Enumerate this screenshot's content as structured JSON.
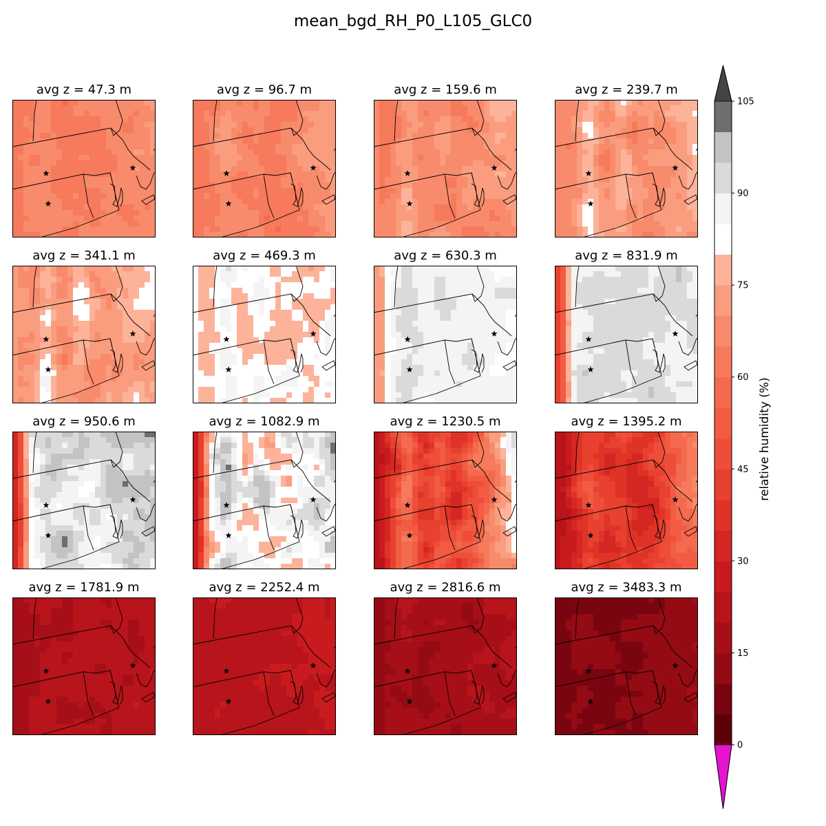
{
  "title": "mean_bgd_RH_P0_L105_GLC0",
  "chart_data": {
    "type": "heatmap",
    "variable": "relative humidity (%)",
    "colorbar": {
      "label": "relative humidity (%)",
      "min": 0,
      "max": 105,
      "step": 5,
      "ticks": [
        0,
        15,
        30,
        45,
        60,
        75,
        90,
        105
      ],
      "extend": "both",
      "under_color": "#e613d1",
      "over_color": "#444444",
      "levels": [
        {
          "from": 0,
          "to": 5,
          "color": "#5e0009"
        },
        {
          "from": 5,
          "to": 10,
          "color": "#790510"
        },
        {
          "from": 10,
          "to": 15,
          "color": "#940b14"
        },
        {
          "from": 15,
          "to": 20,
          "color": "#a60f17"
        },
        {
          "from": 20,
          "to": 25,
          "color": "#b8141b"
        },
        {
          "from": 25,
          "to": 30,
          "color": "#c91b1e"
        },
        {
          "from": 30,
          "to": 35,
          "color": "#d42622"
        },
        {
          "from": 35,
          "to": 40,
          "color": "#df3327"
        },
        {
          "from": 40,
          "to": 45,
          "color": "#e8412f"
        },
        {
          "from": 45,
          "to": 50,
          "color": "#ee4e39"
        },
        {
          "from": 50,
          "to": 55,
          "color": "#f25c43"
        },
        {
          "from": 55,
          "to": 60,
          "color": "#f46a4e"
        },
        {
          "from": 60,
          "to": 65,
          "color": "#f67a5b"
        },
        {
          "from": 65,
          "to": 70,
          "color": "#f88b6b"
        },
        {
          "from": 70,
          "to": 75,
          "color": "#fa9d7f"
        },
        {
          "from": 75,
          "to": 80,
          "color": "#fcb39a"
        },
        {
          "from": 80,
          "to": 85,
          "color": "#ffffff"
        },
        {
          "from": 85,
          "to": 90,
          "color": "#f4f4f4"
        },
        {
          "from": 90,
          "to": 95,
          "color": "#dadada"
        },
        {
          "from": 95,
          "to": 100,
          "color": "#c3c3c3"
        },
        {
          "from": 100,
          "to": 105,
          "color": "#6e6e6e"
        }
      ]
    },
    "panels": [
      {
        "label": "avg z = 47.3 m",
        "z_m": 47.3,
        "rh_mean": 64,
        "rh_spread": 6,
        "west_edge": 64,
        "ridge_peak": 67,
        "east_coast": 72
      },
      {
        "label": "avg z = 96.7 m",
        "z_m": 96.7,
        "rh_mean": 64,
        "rh_spread": 7,
        "west_edge": 64,
        "ridge_peak": 70,
        "east_coast": 74
      },
      {
        "label": "avg z = 159.6 m",
        "z_m": 159.6,
        "rh_mean": 65,
        "rh_spread": 8,
        "west_edge": 65,
        "ridge_peak": 74,
        "east_coast": 76
      },
      {
        "label": "avg z = 239.7 m",
        "z_m": 239.7,
        "rh_mean": 67,
        "rh_spread": 9,
        "west_edge": 66,
        "ridge_peak": 78,
        "east_coast": 80
      },
      {
        "label": "avg z = 341.1 m",
        "z_m": 341.1,
        "rh_mean": 71,
        "rh_spread": 10,
        "west_edge": 70,
        "ridge_peak": 82,
        "east_coast": 80
      },
      {
        "label": "avg z = 469.3 m",
        "z_m": 469.3,
        "rh_mean": 79,
        "rh_spread": 10,
        "west_edge": 80,
        "ridge_peak": 87,
        "east_coast": 84
      },
      {
        "label": "avg z = 630.3 m",
        "z_m": 630.3,
        "rh_mean": 87,
        "rh_spread": 6,
        "west_edge": 70,
        "ridge_peak": 90,
        "east_coast": 86
      },
      {
        "label": "avg z = 831.9 m",
        "z_m": 831.9,
        "rh_mean": 91,
        "rh_spread": 6,
        "west_edge": 40,
        "ridge_peak": 92,
        "east_coast": 91
      },
      {
        "label": "avg z = 950.6 m",
        "z_m": 950.6,
        "rh_mean": 90,
        "rh_spread": 12,
        "west_edge": 30,
        "ridge_peak": 94,
        "east_coast": 96
      },
      {
        "label": "avg z = 1082.9 m",
        "z_m": 1082.9,
        "rh_mean": 82,
        "rh_spread": 18,
        "west_edge": 25,
        "ridge_peak": 92,
        "east_coast": 95
      },
      {
        "label": "avg z = 1230.5 m",
        "z_m": 1230.5,
        "rh_mean": 40,
        "rh_spread": 16,
        "west_edge": 22,
        "ridge_peak": 55,
        "east_coast": 90
      },
      {
        "label": "avg z = 1395.2 m",
        "z_m": 1395.2,
        "rh_mean": 33,
        "rh_spread": 12,
        "west_edge": 22,
        "ridge_peak": 45,
        "east_coast": 70
      },
      {
        "label": "avg z = 1781.9 m",
        "z_m": 1781.9,
        "rh_mean": 20,
        "rh_spread": 5,
        "west_edge": 15,
        "ridge_peak": 23,
        "east_coast": 25
      },
      {
        "label": "avg z = 2252.4 m",
        "z_m": 2252.4,
        "rh_mean": 23,
        "rh_spread": 4,
        "west_edge": 21,
        "ridge_peak": 24,
        "east_coast": 28
      },
      {
        "label": "avg z = 2816.6 m",
        "z_m": 2816.6,
        "rh_mean": 16,
        "rh_spread": 5,
        "west_edge": 12,
        "ridge_peak": 18,
        "east_coast": 22
      },
      {
        "label": "avg z = 3483.3 m",
        "z_m": 3483.3,
        "rh_mean": 10,
        "rh_spread": 4,
        "west_edge": 7,
        "ridge_peak": 10,
        "east_coast": 16
      }
    ]
  }
}
